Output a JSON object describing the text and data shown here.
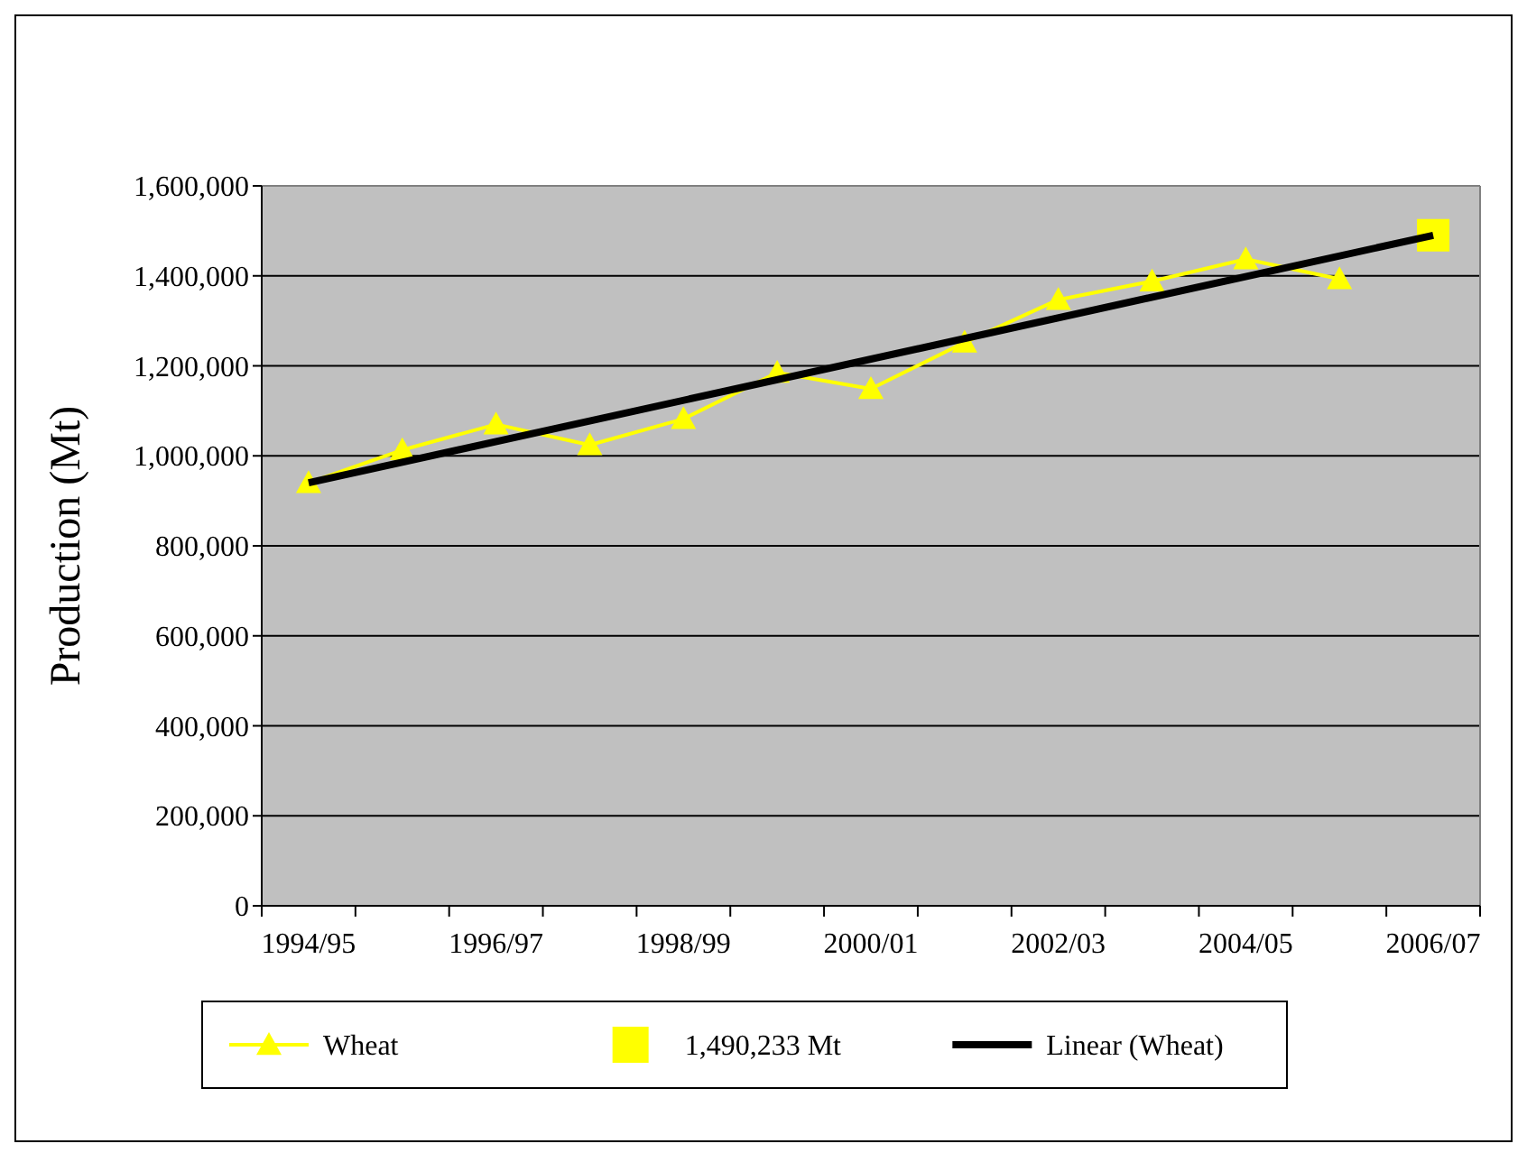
{
  "chart_data": {
    "type": "line",
    "ylabel": "Production (Mt)",
    "categories": [
      "1994/95",
      null,
      "1996/97",
      null,
      "1998/99",
      null,
      "2000/01",
      null,
      "2002/03",
      null,
      "2004/05",
      null,
      "2006/07"
    ],
    "ylim": [
      0,
      1600000
    ],
    "yticks": [
      {
        "value": 0,
        "label": "0"
      },
      {
        "value": 200000,
        "label": "200,000"
      },
      {
        "value": 400000,
        "label": "400,000"
      },
      {
        "value": 600000,
        "label": "600,000"
      },
      {
        "value": 800000,
        "label": "800,000"
      },
      {
        "value": 1000000,
        "label": "1,000,000"
      },
      {
        "value": 1200000,
        "label": "1,200,000"
      },
      {
        "value": 1400000,
        "label": "1,400,000"
      },
      {
        "value": 1600000,
        "label": "1,600,000"
      }
    ],
    "grid": "y",
    "legend": "bottom",
    "series": [
      {
        "name": "Wheat",
        "color": "#ffff00",
        "marker": "triangle",
        "values": [
          940000,
          1013000,
          1070000,
          1024000,
          1082000,
          1185000,
          1149000,
          1252000,
          1347000,
          1388000,
          1437000,
          1393000,
          null
        ]
      },
      {
        "name": "1,490,233 Mt",
        "type": "scatter",
        "color": "#ffff00",
        "marker": "square",
        "values": [
          null,
          null,
          null,
          null,
          null,
          null,
          null,
          null,
          null,
          null,
          null,
          null,
          1490233
        ]
      },
      {
        "name": "Linear (Wheat)",
        "type": "line",
        "color": "#000000",
        "marker": "none",
        "x": [
          "1994/95",
          "2006/07"
        ],
        "values": [
          940000,
          1490000
        ]
      }
    ]
  }
}
